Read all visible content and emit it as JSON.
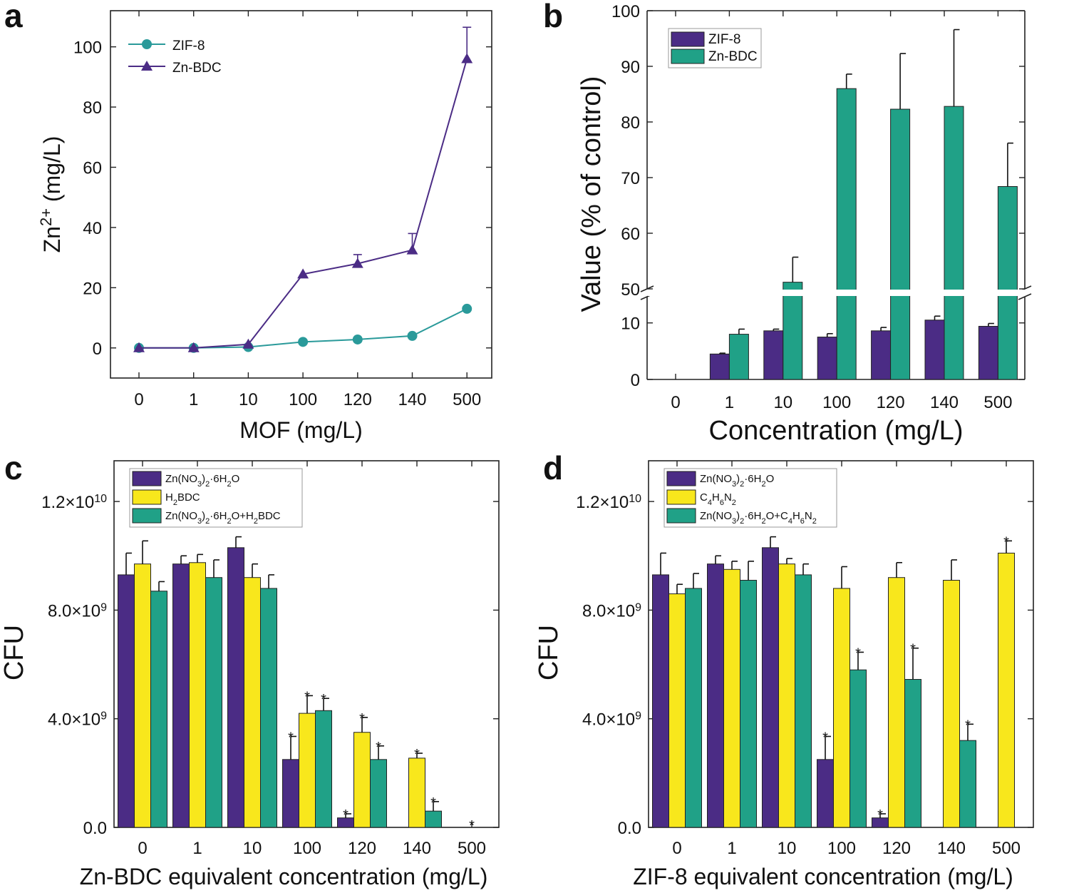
{
  "colors": {
    "purple": "#4b2c85",
    "teal": "#20a187",
    "yellow": "#f8e71c",
    "line_teal": "#2a9a9a"
  },
  "chart_data": [
    {
      "panel": "a",
      "type": "line",
      "categories": [
        "0",
        "1",
        "10",
        "100",
        "120",
        "140",
        "500"
      ],
      "xlabel": "MOF (mg/L)",
      "ylabel_main": "Zn",
      "ylabel_sup": "2+",
      "ylabel_rest": " (mg/L)",
      "ylim": [
        -10,
        112
      ],
      "yticks": [
        0,
        20,
        40,
        60,
        80,
        100
      ],
      "legend": "top-left",
      "series": [
        {
          "name": "ZIF-8",
          "marker": "circle",
          "values": [
            0,
            0,
            0.3,
            2,
            2.8,
            4,
            13
          ],
          "errors": [
            0,
            0,
            0,
            0,
            0,
            0,
            0
          ]
        },
        {
          "name": "Zn-BDC",
          "marker": "triangle",
          "values": [
            0,
            0,
            1.2,
            24.5,
            28,
            32.5,
            96
          ],
          "errors": [
            0,
            0,
            0,
            0,
            3,
            5.5,
            10.5
          ]
        }
      ]
    },
    {
      "panel": "b",
      "type": "bar",
      "categories": [
        "0",
        "1",
        "10",
        "100",
        "120",
        "140",
        "500"
      ],
      "xlabel": "Concentration (mg/L)",
      "ylabel": "Value (% of control)",
      "broken_axis": {
        "lower": [
          0,
          14
        ],
        "upper": [
          50,
          100
        ]
      },
      "yticks": [
        "0",
        "10",
        "50",
        "60",
        "70",
        "80",
        "90",
        "100"
      ],
      "legend": "top-left",
      "series": [
        {
          "name": "ZIF-8",
          "values": [
            null,
            4.5,
            8.6,
            7.5,
            8.6,
            10.5,
            9.4
          ],
          "errors": [
            0,
            0.15,
            0.3,
            0.6,
            0.6,
            0.7,
            0.5
          ]
        },
        {
          "name": "Zn-BDC",
          "values": [
            null,
            8,
            51.2,
            86,
            82.3,
            82.8,
            68.4
          ],
          "errors": [
            0,
            0.9,
            4.5,
            2.6,
            10,
            13.8,
            7.8
          ]
        }
      ]
    },
    {
      "panel": "c",
      "type": "bar",
      "categories": [
        "0",
        "1",
        "10",
        "100",
        "120",
        "140",
        "500"
      ],
      "xlabel": "Zn-BDC equivalent concentration (mg/L)",
      "ylabel": "CFU",
      "ylim": [
        0,
        13500000000.0
      ],
      "yticks": [
        {
          "v": 0,
          "label": "0.0"
        },
        {
          "v": 4000000000.0,
          "m": "4.0",
          "e": "9"
        },
        {
          "v": 8000000000.0,
          "m": "8.0",
          "e": "9"
        },
        {
          "v": 12000000000.0,
          "m": "1.2",
          "e": "10"
        }
      ],
      "legend": "top-left",
      "series": [
        {
          "name": "Zn(NO3)2·6H2O",
          "values": [
            9300000000.0,
            9700000000.0,
            10300000000.0,
            2500000000.0,
            350000000.0,
            0,
            0
          ],
          "errors": [
            800000000.0,
            300000000.0,
            400000000.0,
            850000000.0,
            150000000.0,
            0,
            0
          ],
          "stars": [
            false,
            false,
            false,
            true,
            true,
            false,
            false
          ]
        },
        {
          "name": "H2BDC",
          "values": [
            9700000000.0,
            9750000000.0,
            9200000000.0,
            4200000000.0,
            3500000000.0,
            2550000000.0,
            0
          ],
          "errors": [
            850000000.0,
            300000000.0,
            500000000.0,
            650000000.0,
            550000000.0,
            180000000.0,
            0
          ],
          "stars": [
            false,
            false,
            false,
            true,
            true,
            true,
            true
          ]
        },
        {
          "name": "Zn(NO3)2·6H2O+H2BDC",
          "values": [
            8700000000.0,
            9200000000.0,
            8800000000.0,
            4300000000.0,
            2500000000.0,
            600000000.0,
            0
          ],
          "errors": [
            350000000.0,
            650000000.0,
            500000000.0,
            450000000.0,
            500000000.0,
            350000000.0,
            0
          ],
          "stars": [
            false,
            false,
            false,
            true,
            true,
            true,
            false
          ]
        }
      ]
    },
    {
      "panel": "d",
      "type": "bar",
      "categories": [
        "0",
        "1",
        "10",
        "100",
        "120",
        "140",
        "500"
      ],
      "xlabel": "ZIF-8 equivalent concentration (mg/L)",
      "ylabel": "CFU",
      "ylim": [
        0,
        13500000000.0
      ],
      "yticks": [
        {
          "v": 0,
          "label": "0.0"
        },
        {
          "v": 4000000000.0,
          "m": "4.0",
          "e": "9"
        },
        {
          "v": 8000000000.0,
          "m": "8.0",
          "e": "9"
        },
        {
          "v": 12000000000.0,
          "m": "1.2",
          "e": "10"
        }
      ],
      "legend": "top-left",
      "series": [
        {
          "name": "Zn(NO3)2·6H2O",
          "values": [
            9300000000.0,
            9700000000.0,
            10300000000.0,
            2500000000.0,
            350000000.0,
            0,
            0
          ],
          "errors": [
            800000000.0,
            300000000.0,
            400000000.0,
            850000000.0,
            150000000.0,
            0,
            0
          ],
          "stars": [
            false,
            false,
            false,
            true,
            true,
            false,
            false
          ]
        },
        {
          "name": "C4H6N2",
          "values": [
            8600000000.0,
            9500000000.0,
            9700000000.0,
            8800000000.0,
            9200000000.0,
            9100000000.0,
            10100000000.0
          ],
          "errors": [
            350000000.0,
            300000000.0,
            200000000.0,
            800000000.0,
            550000000.0,
            750000000.0,
            450000000.0
          ],
          "stars": [
            false,
            false,
            false,
            false,
            false,
            false,
            true
          ]
        },
        {
          "name": "Zn(NO3)2·6H2O+C4H6N2",
          "values": [
            8800000000.0,
            9100000000.0,
            9300000000.0,
            5800000000.0,
            5450000000.0,
            3200000000.0,
            0
          ],
          "errors": [
            550000000.0,
            700000000.0,
            400000000.0,
            650000000.0,
            1150000000.0,
            600000000.0,
            0
          ],
          "stars": [
            false,
            false,
            false,
            true,
            true,
            true,
            false
          ]
        }
      ]
    }
  ],
  "panel_labels": {
    "a": "a",
    "b": "b",
    "c": "c",
    "d": "d"
  },
  "legend_labels": {
    "a": [
      "ZIF-8",
      "Zn-BDC"
    ],
    "b": [
      "ZIF-8",
      "Zn-BDC"
    ]
  },
  "star_symbol": "*"
}
